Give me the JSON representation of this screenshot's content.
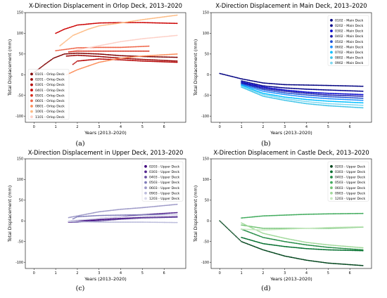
{
  "chart_data": [
    {
      "type": "scatter",
      "title": "X-Direction Displacement in Orlop Deck, 2013–2020",
      "xlabel": "Years (2013–2020)",
      "ylabel": "Total Displacement (mm)",
      "xlim": [
        -0.4,
        7.0
      ],
      "ylim": [
        -115,
        150
      ],
      "xticks": [
        0,
        1,
        2,
        3,
        4,
        5,
        6
      ],
      "yticks": [
        -100,
        -50,
        0,
        50,
        100,
        150
      ],
      "legend_position": "lower-left",
      "caption": "(a)",
      "series": [
        {
          "name": "0101 - Orlop Deck",
          "color": "#7f0000",
          "points": [
            [
              0,
              5
            ],
            [
              0.5,
              25
            ],
            [
              0.9,
              40
            ],
            [
              1.4,
              50
            ],
            [
              2,
              52
            ],
            [
              3,
              50
            ],
            [
              4,
              46
            ],
            [
              5,
              44
            ],
            [
              6.6,
              42
            ]
          ]
        },
        {
          "name": "0201 - Orlop Deck",
          "color": "#990000",
          "points": [
            [
              1.5,
              45
            ],
            [
              2,
              47
            ],
            [
              3,
              44
            ],
            [
              4,
              40
            ],
            [
              5,
              37
            ],
            [
              6.6,
              33
            ]
          ]
        },
        {
          "name": "0301 - Orlop Deck",
          "color": "#b30000",
          "points": [
            [
              1.8,
              25
            ],
            [
              2,
              33
            ],
            [
              3,
              38
            ],
            [
              4,
              36
            ],
            [
              5,
              33
            ],
            [
              6.6,
              30
            ]
          ]
        },
        {
          "name": "0401 - Orlop Deck",
          "color": "#cc0000",
          "points": [
            [
              1,
              100
            ],
            [
              1.4,
              110
            ],
            [
              2,
              120
            ],
            [
              3,
              125
            ],
            [
              4,
              126
            ],
            [
              5,
              126
            ],
            [
              6.6,
              124
            ]
          ]
        },
        {
          "name": "0501 - Orlop Deck",
          "color": "#d7301f",
          "points": [
            [
              1.6,
              55
            ],
            [
              2,
              57
            ],
            [
              3,
              57
            ],
            [
              4,
              57
            ],
            [
              5.3,
              57
            ]
          ]
        },
        {
          "name": "0601 - Orlop Deck",
          "color": "#ef6548",
          "points": [
            [
              1,
              58
            ],
            [
              2,
              65
            ],
            [
              3,
              66
            ],
            [
              4,
              66
            ],
            [
              5.3,
              69
            ]
          ]
        },
        {
          "name": "0801 - Orlop Deck",
          "color": "#fc8d59",
          "points": [
            [
              1.5,
              0
            ],
            [
              2,
              12
            ],
            [
              3,
              30
            ],
            [
              4,
              40
            ],
            [
              5,
              45
            ],
            [
              6.6,
              50
            ]
          ]
        },
        {
          "name": "1001 - Orlop Deck",
          "color": "#fdbb84",
          "points": [
            [
              1.2,
              70
            ],
            [
              1.8,
              95
            ],
            [
              2.5,
              110
            ],
            [
              3,
              118
            ],
            [
              4,
              125
            ],
            [
              5,
              133
            ],
            [
              6.6,
              144
            ]
          ]
        },
        {
          "name": "1101 - Orlop Deck",
          "color": "#fdd0c7",
          "points": [
            [
              1.8,
              58
            ],
            [
              3,
              70
            ],
            [
              4,
              80
            ],
            [
              5,
              87
            ],
            [
              6.6,
              95
            ]
          ]
        }
      ]
    },
    {
      "type": "scatter",
      "title": "X-Direction Displacement in Main Deck, 2013–2020",
      "xlabel": "Years (2013–2020)",
      "ylabel": "Total Displacement (mm)",
      "xlim": [
        -0.4,
        7.0
      ],
      "ylim": [
        -115,
        150
      ],
      "xticks": [
        0,
        1,
        2,
        3,
        4,
        5,
        6
      ],
      "yticks": [
        -100,
        -50,
        0,
        50,
        100,
        150
      ],
      "legend_position": "upper-right",
      "caption": "(b)",
      "series": [
        {
          "name": "0102 - Main Deck",
          "color": "#000080",
          "points": [
            [
              0,
              3
            ],
            [
              1,
              -10
            ],
            [
              2,
              -20
            ],
            [
              3,
              -24
            ],
            [
              4,
              -25
            ],
            [
              5,
              -26
            ],
            [
              6.6,
              -28
            ]
          ]
        },
        {
          "name": "0202 - Main Deck",
          "color": "#00008b",
          "points": [
            [
              1,
              -15
            ],
            [
              2,
              -27
            ],
            [
              3,
              -32
            ],
            [
              4,
              -35
            ],
            [
              5,
              -37
            ],
            [
              6.6,
              -40
            ]
          ]
        },
        {
          "name": "0302 - Main Deck",
          "color": "#0000cd",
          "points": [
            [
              1,
              -18
            ],
            [
              2,
              -30
            ],
            [
              3,
              -37
            ],
            [
              4,
              -42
            ],
            [
              5,
              -45
            ],
            [
              6.6,
              -48
            ]
          ]
        },
        {
          "name": "0402 - Main Deck",
          "color": "#1a1aa6",
          "points": [
            [
              1,
              -20
            ],
            [
              2,
              -33
            ],
            [
              3,
              -40
            ],
            [
              4,
              -45
            ],
            [
              5,
              -49
            ],
            [
              6.6,
              -52
            ]
          ]
        },
        {
          "name": "0502 - Main Deck",
          "color": "#1f4fd1",
          "points": [
            [
              1,
              -22
            ],
            [
              2,
              -36
            ],
            [
              3,
              -44
            ],
            [
              4,
              -49
            ],
            [
              5,
              -53
            ],
            [
              6.6,
              -57
            ]
          ]
        },
        {
          "name": "0602 - Main Deck",
          "color": "#1e90ff",
          "points": [
            [
              1,
              -24
            ],
            [
              2,
              -40
            ],
            [
              3,
              -48
            ],
            [
              4,
              -54
            ],
            [
              5,
              -58
            ],
            [
              6.6,
              -62
            ]
          ]
        },
        {
          "name": "0702 - Main Deck",
          "color": "#00bfff",
          "points": [
            [
              1,
              -26
            ],
            [
              2,
              -45
            ],
            [
              3,
              -54
            ],
            [
              4,
              -60
            ],
            [
              5,
              -64
            ],
            [
              6.6,
              -68
            ]
          ]
        },
        {
          "name": "0802 - Main Deck",
          "color": "#40c4e8",
          "points": [
            [
              1,
              -30
            ],
            [
              2,
              -52
            ],
            [
              3,
              -62
            ],
            [
              4,
              -70
            ],
            [
              5,
              -75
            ],
            [
              6.6,
              -80
            ]
          ]
        },
        {
          "name": "0902 - Main Deck",
          "color": "#7fd8f0",
          "points": [
            [
              1,
              -28
            ],
            [
              2,
              -48
            ],
            [
              3,
              -58
            ],
            [
              4,
              -65
            ],
            [
              5,
              -70
            ],
            [
              6.6,
              -74
            ]
          ]
        }
      ]
    },
    {
      "type": "scatter",
      "title": "X-Direction Displacement in Upper Deck, 2013–2020",
      "xlabel": "Years (2013–2020)",
      "ylabel": "Total Displacement (mm)",
      "xlim": [
        -0.4,
        7.0
      ],
      "ylim": [
        -115,
        150
      ],
      "xticks": [
        0,
        1,
        2,
        3,
        4,
        5,
        6
      ],
      "yticks": [
        -100,
        -50,
        0,
        50,
        100,
        150
      ],
      "legend_position": "upper-right",
      "caption": "(c)",
      "series": [
        {
          "name": "0203 - Upper Deck",
          "color": "#3f007d",
          "points": [
            [
              1.6,
              -3
            ],
            [
              2,
              -3
            ],
            [
              3,
              3
            ],
            [
              4,
              6
            ],
            [
              5,
              8
            ],
            [
              6.6,
              10
            ]
          ]
        },
        {
          "name": "0303 - Upper Deck",
          "color": "#54278f",
          "points": [
            [
              1.6,
              -2
            ],
            [
              2,
              -1
            ],
            [
              3,
              6
            ],
            [
              4,
              10
            ],
            [
              5,
              15
            ],
            [
              6.6,
              20
            ]
          ]
        },
        {
          "name": "0403 - Upper Deck",
          "color": "#6a51a3",
          "points": [
            [
              1.8,
              -3
            ],
            [
              2,
              -3
            ],
            [
              3,
              0
            ],
            [
              4,
              4
            ],
            [
              5,
              7
            ],
            [
              6.6,
              9
            ]
          ]
        },
        {
          "name": "0503 - Upper Deck",
          "color": "#807dba",
          "points": [
            [
              1.8,
              5
            ],
            [
              2,
              10
            ],
            [
              3,
              13
            ],
            [
              4,
              14
            ],
            [
              5,
              15
            ],
            [
              6.6,
              15
            ]
          ]
        },
        {
          "name": "0603 - Upper Deck",
          "color": "#9e9ac8",
          "points": [
            [
              1.6,
              8
            ],
            [
              2,
              12
            ],
            [
              3,
              22
            ],
            [
              4,
              28
            ],
            [
              5,
              32
            ],
            [
              6.6,
              40
            ]
          ]
        },
        {
          "name": "0903 - Upper Deck",
          "color": "#bcbddc",
          "points": [
            [
              1.6,
              -2
            ],
            [
              2,
              -2
            ],
            [
              3,
              -3
            ],
            [
              4,
              -3
            ],
            [
              5,
              -3
            ],
            [
              6.6,
              -4
            ]
          ]
        },
        {
          "name": "1203 - Upper Deck",
          "color": "#dadaeb",
          "points": [
            [
              1.6,
              0
            ],
            [
              2,
              2
            ],
            [
              3,
              6
            ],
            [
              4,
              10
            ],
            [
              5,
              12
            ],
            [
              6.6,
              15
            ]
          ]
        }
      ]
    },
    {
      "type": "scatter",
      "title": "X-Direction Displacement in Castle Deck, 2013–2020",
      "xlabel": "Years (2013–2020)",
      "ylabel": "Total Displacement (mm)",
      "xlim": [
        -0.4,
        7.0
      ],
      "ylim": [
        -115,
        150
      ],
      "xticks": [
        0,
        1,
        2,
        3,
        4,
        5,
        6
      ],
      "yticks": [
        -100,
        -50,
        0,
        50,
        100,
        150
      ],
      "legend_position": "upper-right",
      "caption": "(d)",
      "series": [
        {
          "name": "0203 - Upper Deck",
          "color": "#00441b",
          "points": [
            [
              0,
              0
            ],
            [
              1,
              -50
            ],
            [
              2,
              -70
            ],
            [
              3,
              -85
            ],
            [
              4,
              -95
            ],
            [
              5,
              -102
            ],
            [
              6.6,
              -108
            ]
          ]
        },
        {
          "name": "0303 - Upper Deck",
          "color": "#006d2c",
          "points": [
            [
              1,
              -40
            ],
            [
              2,
              -55
            ],
            [
              3,
              -62
            ],
            [
              4,
              -67
            ],
            [
              5,
              -70
            ],
            [
              6.6,
              -72
            ]
          ]
        },
        {
          "name": "0403 - Upper Deck",
          "color": "#238b45",
          "points": [
            [
              1,
              -20
            ],
            [
              2,
              -40
            ],
            [
              3,
              -50
            ],
            [
              4,
              -58
            ],
            [
              5,
              -64
            ],
            [
              6.6,
              -70
            ]
          ]
        },
        {
          "name": "0503 - Upper Deck",
          "color": "#41ab5d",
          "points": [
            [
              1,
              7
            ],
            [
              2,
              12
            ],
            [
              3,
              14
            ],
            [
              4,
              16
            ],
            [
              5,
              17
            ],
            [
              6.6,
              18
            ]
          ]
        },
        {
          "name": "0603 - Upper Deck",
          "color": "#74c476",
          "points": [
            [
              1,
              -10
            ],
            [
              2,
              -18
            ],
            [
              3,
              -18
            ],
            [
              4,
              -18
            ],
            [
              5,
              -18
            ],
            [
              6.6,
              -15
            ]
          ]
        },
        {
          "name": "0903 - Upper Deck",
          "color": "#a1d99b",
          "points": [
            [
              1,
              -5
            ],
            [
              2,
              -30
            ],
            [
              3,
              -42
            ],
            [
              4,
              -52
            ],
            [
              5,
              -58
            ],
            [
              6.6,
              -65
            ]
          ]
        },
        {
          "name": "1203 - Upper Deck",
          "color": "#c7e9c0",
          "points": [
            [
              1,
              -20
            ],
            [
              2,
              -22
            ],
            [
              3,
              -20
            ],
            [
              4,
              -18
            ],
            [
              5,
              -16
            ],
            [
              6.6,
              -14
            ]
          ]
        }
      ]
    }
  ]
}
